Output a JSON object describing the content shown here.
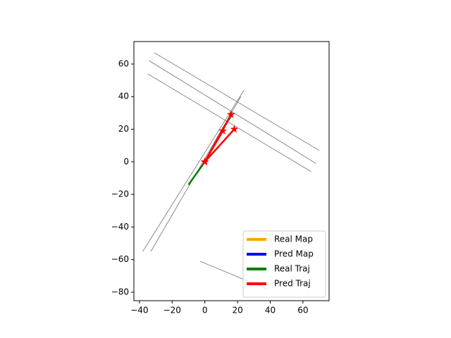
{
  "chart_data": {
    "type": "line",
    "xlim": [
      -43.4,
      76
    ],
    "ylim": [
      -85.2,
      73.8
    ],
    "xticks": [
      {
        "value": -40,
        "label": "−40"
      },
      {
        "value": -20,
        "label": "−20"
      },
      0,
      20,
      40,
      60
    ],
    "yticks": [
      {
        "value": -80,
        "label": "−80"
      },
      {
        "value": -60,
        "label": "−60"
      },
      {
        "value": -40,
        "label": "−40"
      },
      {
        "value": -20,
        "label": "−20"
      },
      0,
      20,
      40,
      60
    ],
    "legend": "lower right",
    "series": [
      {
        "color": "#808080",
        "x": [
          -31,
          70,
          null,
          -34,
          68,
          null,
          -35,
          65,
          null,
          -38,
          24,
          null,
          -33,
          22,
          null,
          -3,
          38
        ],
        "y": [
          67,
          7,
          null,
          62,
          -1,
          null,
          54,
          -6,
          null,
          -55,
          44,
          null,
          -55,
          40,
          null,
          -61,
          -78
        ]
      },
      {
        "name": "Real Map",
        "color": "#ffa500",
        "x": [],
        "y": []
      },
      {
        "name": "Pred Map",
        "color": "#0000ff",
        "x": [],
        "y": []
      },
      {
        "name": "Real Traj",
        "color": "#008000",
        "x": [
          -10,
          0,
          14,
          16
        ],
        "y": [
          -14,
          0,
          25,
          28
        ]
      },
      {
        "name": "Pred Traj",
        "color": "#ff0000",
        "marker": "star",
        "x": [
          0,
          11,
          null,
          0,
          18,
          null,
          0,
          16
        ],
        "y": [
          0,
          19,
          null,
          0,
          20,
          null,
          0,
          29
        ]
      }
    ]
  }
}
